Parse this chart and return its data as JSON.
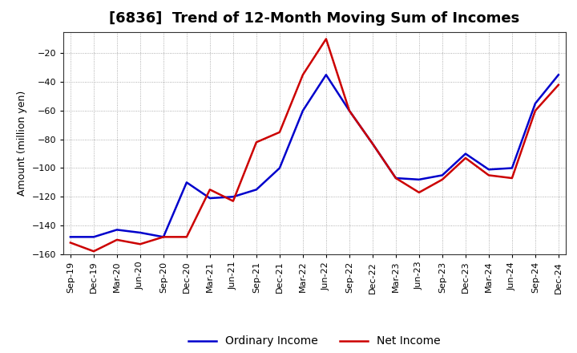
{
  "title": "[6836]  Trend of 12-Month Moving Sum of Incomes",
  "ylabel": "Amount (million yen)",
  "x_labels": [
    "Sep-19",
    "Dec-19",
    "Mar-20",
    "Jun-20",
    "Sep-20",
    "Dec-20",
    "Mar-21",
    "Jun-21",
    "Sep-21",
    "Dec-21",
    "Mar-22",
    "Jun-22",
    "Sep-22",
    "Dec-22",
    "Mar-23",
    "Jun-23",
    "Sep-23",
    "Dec-23",
    "Mar-24",
    "Jun-24",
    "Sep-24",
    "Dec-24"
  ],
  "ordinary_income": [
    -148,
    -148,
    -143,
    -145,
    -148,
    -110,
    -121,
    -120,
    -115,
    -100,
    -60,
    -35,
    -60,
    -83,
    -107,
    -108,
    -105,
    -90,
    -101,
    -100,
    -55,
    -35
  ],
  "net_income": [
    -152,
    -158,
    -150,
    -153,
    -148,
    -148,
    -115,
    -123,
    -82,
    -75,
    -35,
    -10,
    -60,
    -83,
    -107,
    -117,
    -108,
    -93,
    -105,
    -107,
    -60,
    -42
  ],
  "ordinary_color": "#0000cc",
  "net_color": "#cc0000",
  "ylim": [
    -160,
    -5
  ],
  "yticks": [
    -20,
    -40,
    -60,
    -80,
    -100,
    -120,
    -140,
    -160
  ],
  "bg_color": "#ffffff",
  "grid_color": "#999999",
  "title_fontsize": 13,
  "axis_fontsize": 9,
  "tick_fontsize": 8,
  "legend_fontsize": 10,
  "line_width": 1.8
}
